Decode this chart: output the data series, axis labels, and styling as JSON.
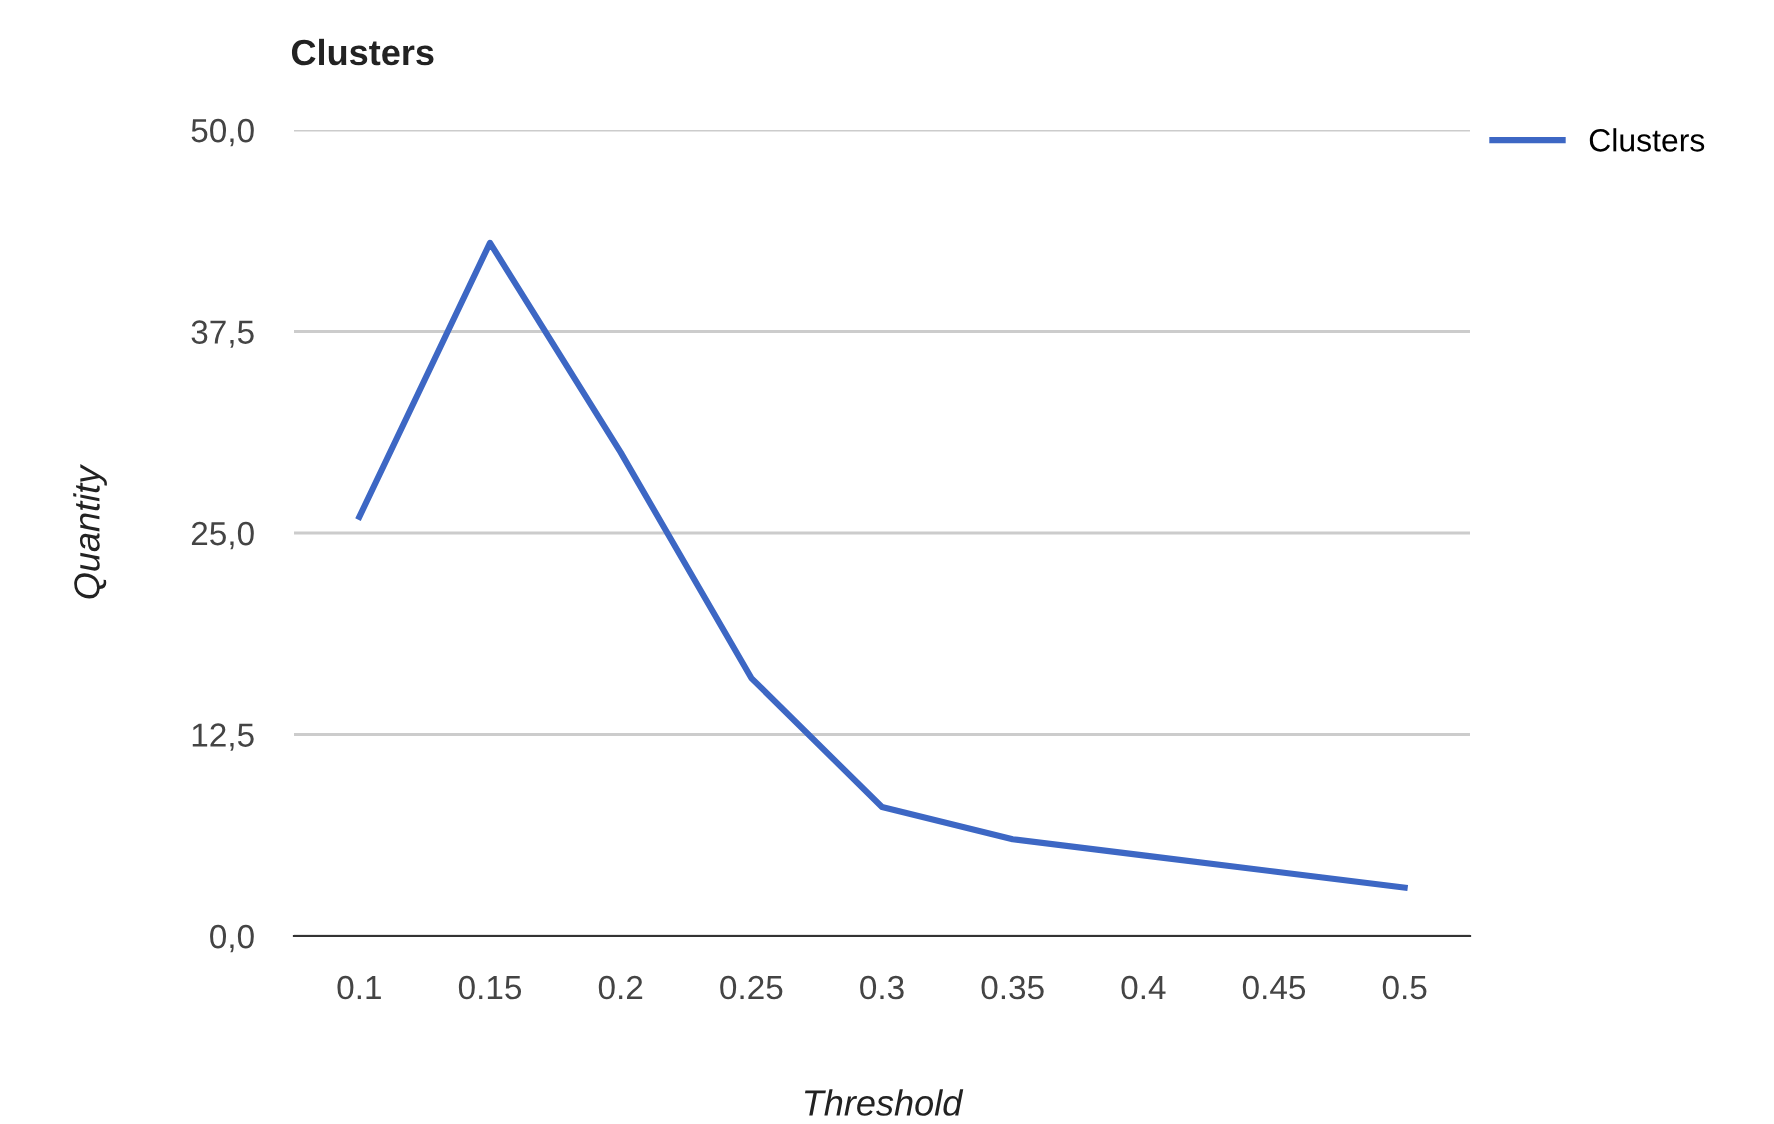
{
  "chart_data": {
    "type": "line",
    "title": "Clusters",
    "xlabel": "Threshold",
    "ylabel": "Quantity",
    "categories": [
      "0.1",
      "0.15",
      "0.2",
      "0.25",
      "0.3",
      "0.35",
      "0.4",
      "0.45",
      "0.5"
    ],
    "series": [
      {
        "name": "Clusters",
        "color": "#3d67c4",
        "values": [
          26,
          43,
          30,
          16,
          8,
          6,
          5,
          4,
          3
        ]
      }
    ],
    "ylim": [
      0,
      50
    ],
    "yticks": [
      {
        "value": 0,
        "label": "0,0"
      },
      {
        "value": 12.5,
        "label": "12,5"
      },
      {
        "value": 25,
        "label": "25,0"
      },
      {
        "value": 37.5,
        "label": "37,5"
      },
      {
        "value": 50,
        "label": "50,0"
      }
    ],
    "grid": "y",
    "legend": "top right",
    "marker": "none",
    "line_style": "solid"
  }
}
